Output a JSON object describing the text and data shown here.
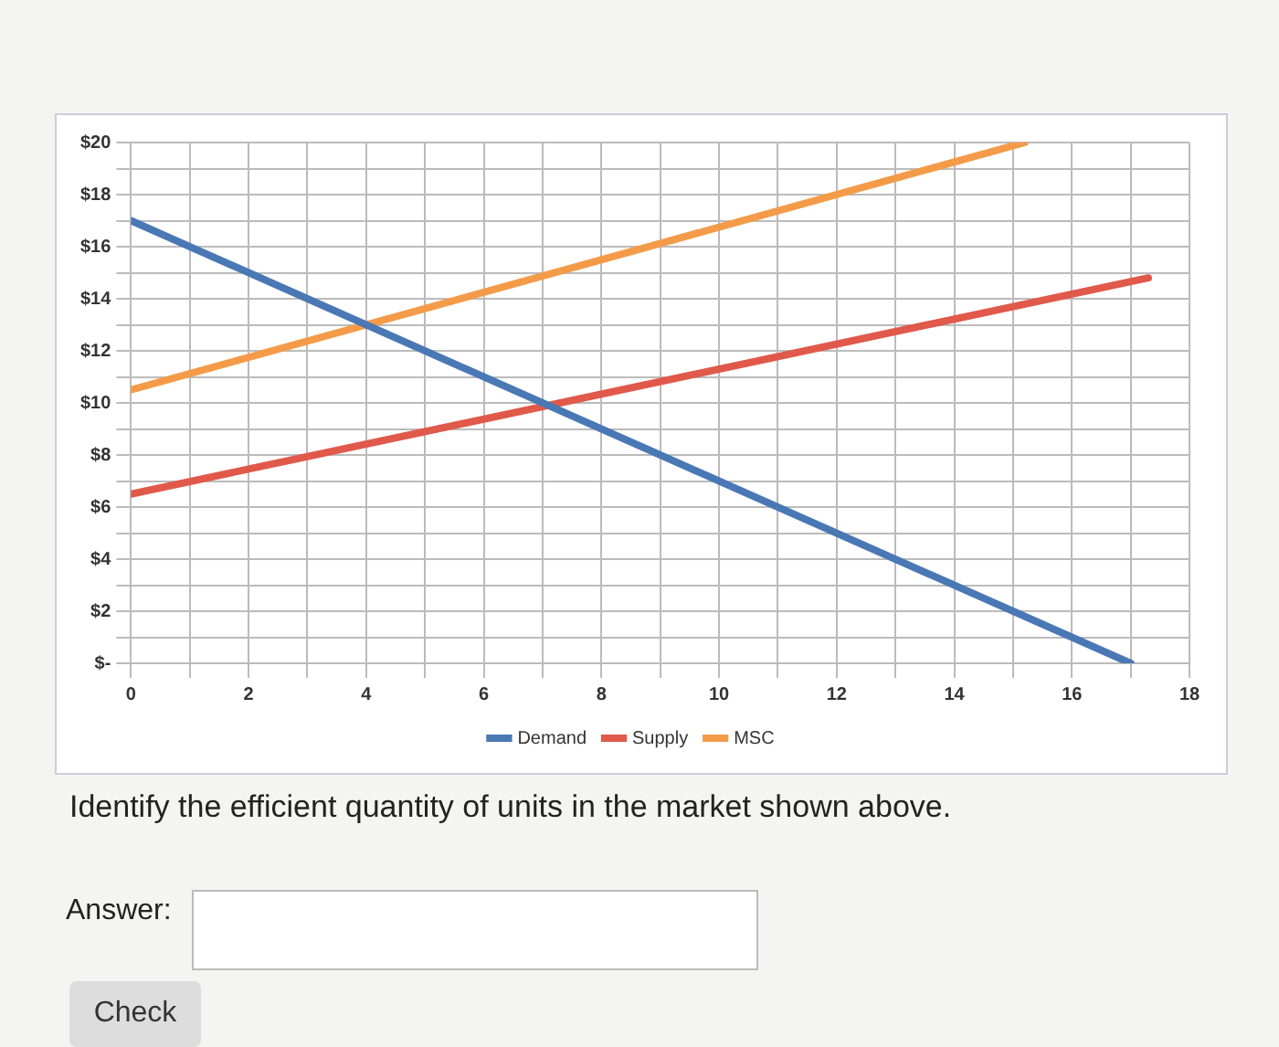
{
  "chart_data": {
    "type": "line",
    "series": [
      {
        "name": "Demand",
        "color": "#4a78b5",
        "x": [
          0,
          17
        ],
        "values": [
          17,
          0
        ]
      },
      {
        "name": "Supply",
        "color": "#e0594a",
        "x": [
          0,
          17.3
        ],
        "values": [
          6.5,
          14.8
        ]
      },
      {
        "name": "MSC",
        "color": "#f49b4a",
        "x": [
          0,
          15.2
        ],
        "values": [
          10.5,
          20
        ]
      }
    ],
    "xlim": [
      0,
      18
    ],
    "xticks": [
      0,
      {
        "value": 1,
        "label": null
      },
      2,
      {
        "value": 3,
        "label": null
      },
      4,
      {
        "value": 5,
        "label": null
      },
      6,
      {
        "value": 7,
        "label": null
      },
      8,
      {
        "value": 9,
        "label": null
      },
      10,
      {
        "value": 11,
        "label": null
      },
      12,
      {
        "value": 13,
        "label": null
      },
      14,
      {
        "value": 15,
        "label": null
      },
      16,
      {
        "value": 17,
        "label": null
      },
      18
    ],
    "ylim": [
      0,
      20
    ],
    "yticks": [
      {
        "value": 0,
        "label": "$-"
      },
      {
        "value": 1,
        "label": null
      },
      {
        "value": 2,
        "label": "$2"
      },
      {
        "value": 3,
        "label": null
      },
      {
        "value": 4,
        "label": "$4"
      },
      {
        "value": 5,
        "label": null
      },
      {
        "value": 6,
        "label": "$6"
      },
      {
        "value": 7,
        "label": null
      },
      {
        "value": 8,
        "label": "$8"
      },
      {
        "value": 9,
        "label": null
      },
      {
        "value": 10,
        "label": "$10"
      },
      {
        "value": 11,
        "label": null
      },
      {
        "value": 12,
        "label": "$12"
      },
      {
        "value": 13,
        "label": null
      },
      {
        "value": 14,
        "label": "$14"
      },
      {
        "value": 15,
        "label": null
      },
      {
        "value": 16,
        "label": "$16"
      },
      {
        "value": 17,
        "label": null
      },
      {
        "value": 18,
        "label": "$18"
      },
      {
        "value": 19,
        "label": null
      },
      {
        "value": 20,
        "label": "$20"
      }
    ],
    "grid": true,
    "legend": "bottom",
    "marker": "none",
    "line_style": "solid",
    "annotations": [
      "Identify the efficient quantity of units in the market shown above.",
      "Answer:",
      "Check"
    ]
  }
}
